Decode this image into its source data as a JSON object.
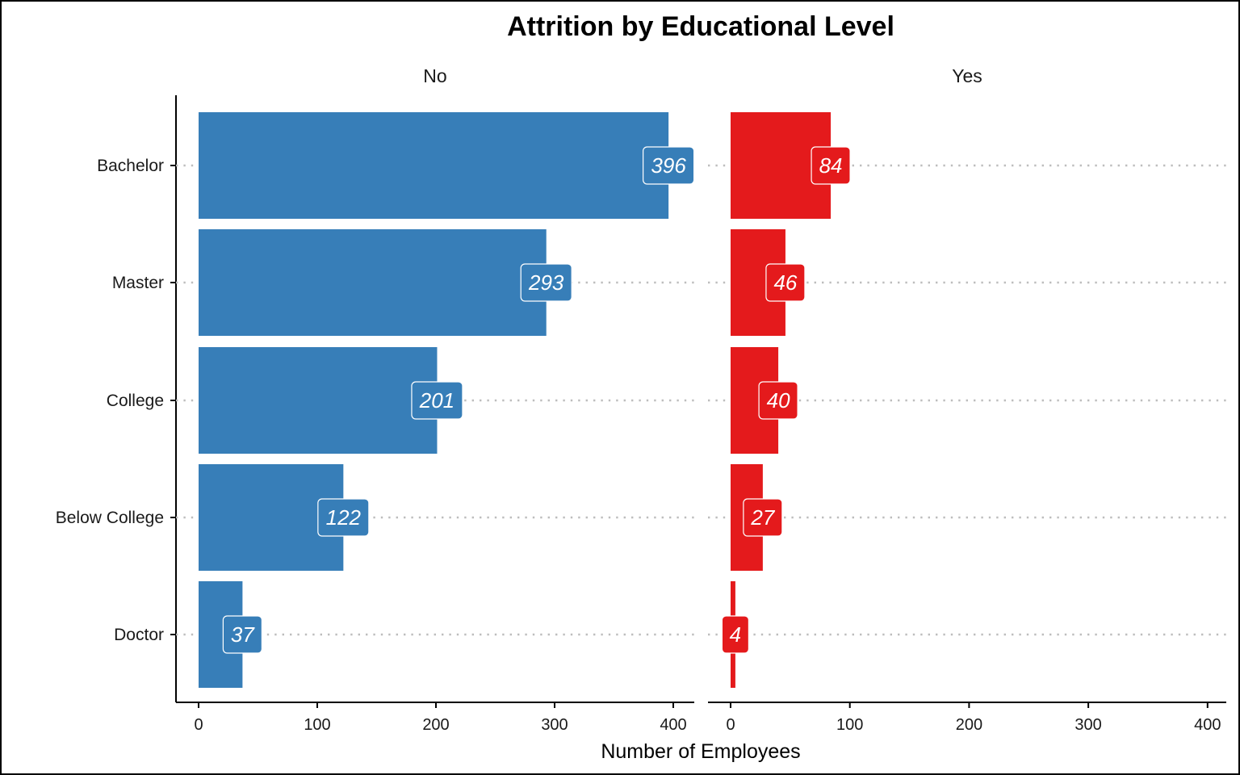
{
  "chart_data": {
    "type": "bar",
    "orientation": "horizontal",
    "title": "Attrition by Educational Level",
    "xlabel": "Number of Employees",
    "ylabel": "",
    "categories": [
      "Bachelor",
      "Master",
      "College",
      "Below College",
      "Doctor"
    ],
    "xlim": [
      0,
      400
    ],
    "x_ticks": [
      "0",
      "100",
      "200",
      "300",
      "400"
    ],
    "grid": "dotted horizontal",
    "legend": "none",
    "panels": [
      {
        "name": "No",
        "color": "#377EB8",
        "values": [
          396,
          293,
          201,
          122,
          37
        ]
      },
      {
        "name": "Yes",
        "color": "#E41A1C",
        "values": [
          84,
          46,
          40,
          27,
          4
        ]
      }
    ]
  }
}
